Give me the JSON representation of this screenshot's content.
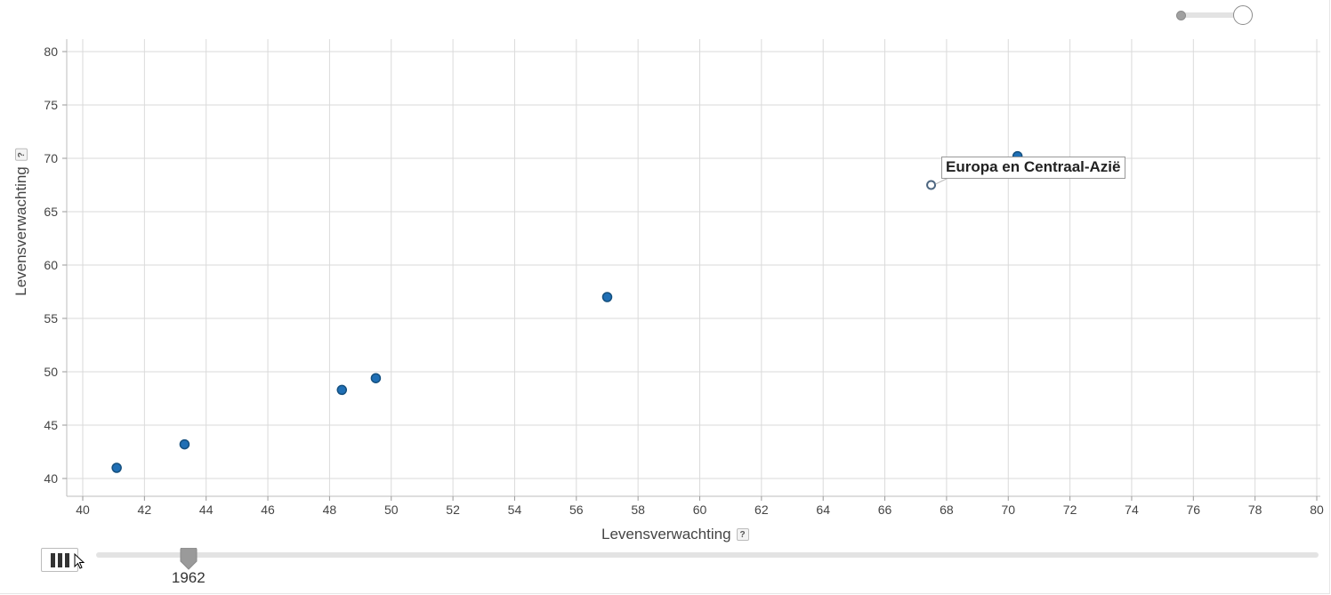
{
  "chart_data": {
    "type": "scatter",
    "xlabel": "Levensverwachting",
    "ylabel": "Levensverwachting",
    "xlim": [
      40,
      80
    ],
    "ylim": [
      40,
      80
    ],
    "x_ticks": [
      "40",
      "42",
      "44",
      "46",
      "48",
      "50",
      "52",
      "54",
      "56",
      "58",
      "60",
      "62",
      "64",
      "66",
      "68",
      "70",
      "72",
      "74",
      "76",
      "78",
      "80"
    ],
    "y_ticks": [
      "40",
      "45",
      "50",
      "55",
      "60",
      "65",
      "70",
      "75",
      "80"
    ],
    "grid": true,
    "points": [
      {
        "x": 41.1,
        "y": 41.0
      },
      {
        "x": 43.3,
        "y": 43.2
      },
      {
        "x": 48.4,
        "y": 48.3
      },
      {
        "x": 49.5,
        "y": 49.4
      },
      {
        "x": 57.0,
        "y": 57.0
      },
      {
        "x": 70.3,
        "y": 70.2
      },
      {
        "x": 67.5,
        "y": 67.5,
        "name": "Europa en Centraal-Azië",
        "highlighted": true
      }
    ],
    "tooltip": "Europa en Centraal-Azië",
    "point_color": "#1f6fb5",
    "point_stroke": "#15507f",
    "highlight_color": "#4d6680"
  },
  "controls": {
    "help_icon": "?",
    "play_icon": "pause-icon",
    "time": {
      "value": "1962",
      "position": 0.0377
    },
    "size_slider": {
      "min": 0.0,
      "max": 1.0
    }
  }
}
